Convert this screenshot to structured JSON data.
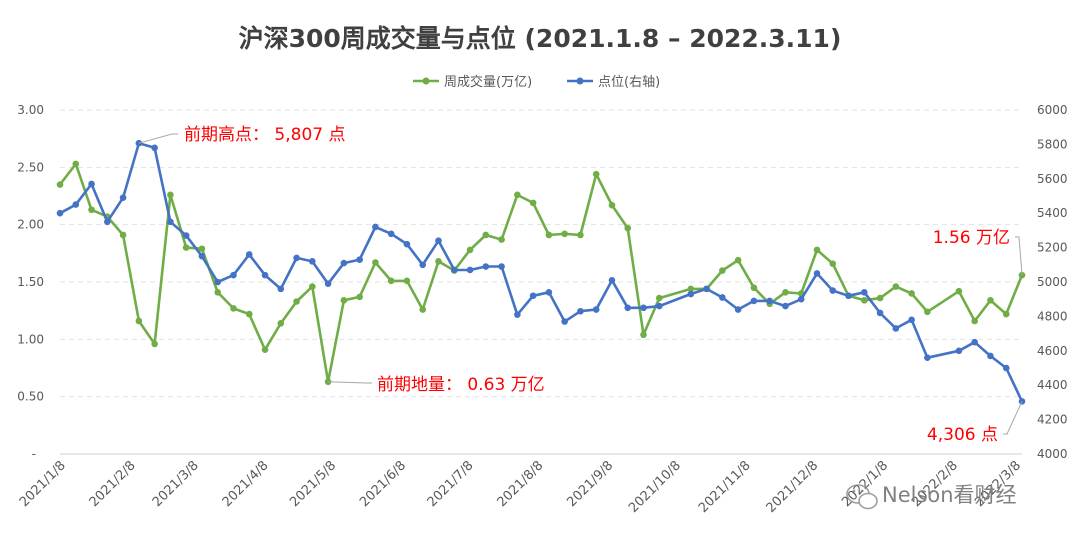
{
  "chart_data": {
    "type": "line",
    "title": "沪深300周成交量与点位 (2021.1.8 – 2022.3.11)",
    "legend_position": "top",
    "grid": true,
    "xlabel": "",
    "ylabel": "",
    "y2label": "",
    "ylim": [
      0,
      3
    ],
    "y2lim": [
      4000,
      6000
    ],
    "x_tick_labels": [
      "2021/1/8",
      "2021/2/8",
      "2021/3/8",
      "2021/4/8",
      "2021/5/8",
      "2021/6/8",
      "2021/7/8",
      "2021/8/8",
      "2021/9/8",
      "2021/10/8",
      "2021/11/8",
      "2021/12/8",
      "2022/1/8",
      "2022/2/8",
      "2022/3/8"
    ],
    "y_tick_labels": [
      "-",
      "0.50",
      "1.00",
      "1.50",
      "2.00",
      "2.50",
      "3.00"
    ],
    "y2_tick_labels": [
      "4000",
      "4200",
      "4400",
      "4600",
      "4800",
      "5000",
      "5200",
      "5400",
      "5600",
      "5800",
      "6000"
    ],
    "series": [
      {
        "name": "周成交量(万亿)",
        "color": "#70ad47",
        "axis": "left",
        "points": [
          [
            "2021-01-08",
            2.35
          ],
          [
            "2021-01-15",
            2.53
          ],
          [
            "2021-01-22",
            2.13
          ],
          [
            "2021-01-29",
            2.07
          ],
          [
            "2021-02-05",
            1.91
          ],
          [
            "2021-02-12",
            1.16
          ],
          [
            "2021-02-19",
            0.96
          ],
          [
            "2021-02-26",
            2.26
          ],
          [
            "2021-03-05",
            1.8
          ],
          [
            "2021-03-12",
            1.79
          ],
          [
            "2021-03-19",
            1.41
          ],
          [
            "2021-03-26",
            1.27
          ],
          [
            "2021-04-02",
            1.22
          ],
          [
            "2021-04-09",
            0.91
          ],
          [
            "2021-04-16",
            1.14
          ],
          [
            "2021-04-23",
            1.33
          ],
          [
            "2021-04-30",
            1.46
          ],
          [
            "2021-05-07",
            0.63
          ],
          [
            "2021-05-14",
            1.34
          ],
          [
            "2021-05-21",
            1.37
          ],
          [
            "2021-05-28",
            1.67
          ],
          [
            "2021-06-04",
            1.51
          ],
          [
            "2021-06-11",
            1.51
          ],
          [
            "2021-06-18",
            1.26
          ],
          [
            "2021-06-25",
            1.68
          ],
          [
            "2021-07-02",
            1.6
          ],
          [
            "2021-07-09",
            1.78
          ],
          [
            "2021-07-16",
            1.91
          ],
          [
            "2021-07-23",
            1.87
          ],
          [
            "2021-07-30",
            2.26
          ],
          [
            "2021-08-06",
            2.19
          ],
          [
            "2021-08-13",
            1.91
          ],
          [
            "2021-08-20",
            1.92
          ],
          [
            "2021-08-27",
            1.91
          ],
          [
            "2021-09-03",
            2.44
          ],
          [
            "2021-09-10",
            2.17
          ],
          [
            "2021-09-17",
            1.97
          ],
          [
            "2021-09-24",
            1.04
          ],
          [
            "2021-10-01",
            1.36
          ],
          [
            "2021-10-15",
            1.44
          ],
          [
            "2021-10-22",
            1.44
          ],
          [
            "2021-10-29",
            1.6
          ],
          [
            "2021-11-05",
            1.69
          ],
          [
            "2021-11-12",
            1.45
          ],
          [
            "2021-11-19",
            1.31
          ],
          [
            "2021-11-26",
            1.41
          ],
          [
            "2021-12-03",
            1.4
          ],
          [
            "2021-12-10",
            1.78
          ],
          [
            "2021-12-17",
            1.66
          ],
          [
            "2021-12-24",
            1.38
          ],
          [
            "2021-12-31",
            1.34
          ],
          [
            "2022-01-07",
            1.36
          ],
          [
            "2022-01-14",
            1.46
          ],
          [
            "2022-01-21",
            1.4
          ],
          [
            "2022-01-28",
            1.24
          ],
          [
            "2022-02-11",
            1.42
          ],
          [
            "2022-02-18",
            1.16
          ],
          [
            "2022-02-25",
            1.34
          ],
          [
            "2022-03-04",
            1.22
          ],
          [
            "2022-03-11",
            1.56
          ]
        ]
      },
      {
        "name": "点位(右轴)",
        "color": "#4472c4",
        "axis": "right",
        "points": [
          [
            "2021-01-08",
            5400
          ],
          [
            "2021-01-15",
            5450
          ],
          [
            "2021-01-22",
            5570
          ],
          [
            "2021-01-29",
            5350
          ],
          [
            "2021-02-05",
            5490
          ],
          [
            "2021-02-12",
            5807
          ],
          [
            "2021-02-19",
            5780
          ],
          [
            "2021-02-26",
            5350
          ],
          [
            "2021-03-05",
            5270
          ],
          [
            "2021-03-12",
            5150
          ],
          [
            "2021-03-19",
            5000
          ],
          [
            "2021-03-26",
            5040
          ],
          [
            "2021-04-02",
            5160
          ],
          [
            "2021-04-09",
            5040
          ],
          [
            "2021-04-16",
            4960
          ],
          [
            "2021-04-23",
            5140
          ],
          [
            "2021-04-30",
            5120
          ],
          [
            "2021-05-07",
            4990
          ],
          [
            "2021-05-14",
            5110
          ],
          [
            "2021-05-21",
            5130
          ],
          [
            "2021-05-28",
            5320
          ],
          [
            "2021-06-04",
            5280
          ],
          [
            "2021-06-11",
            5220
          ],
          [
            "2021-06-18",
            5100
          ],
          [
            "2021-06-25",
            5240
          ],
          [
            "2021-07-02",
            5070
          ],
          [
            "2021-07-09",
            5070
          ],
          [
            "2021-07-16",
            5090
          ],
          [
            "2021-07-23",
            5090
          ],
          [
            "2021-07-30",
            4810
          ],
          [
            "2021-08-06",
            4920
          ],
          [
            "2021-08-13",
            4940
          ],
          [
            "2021-08-20",
            4770
          ],
          [
            "2021-08-27",
            4830
          ],
          [
            "2021-09-03",
            4840
          ],
          [
            "2021-09-10",
            5010
          ],
          [
            "2021-09-17",
            4850
          ],
          [
            "2021-09-24",
            4850
          ],
          [
            "2021-10-01",
            4860
          ],
          [
            "2021-10-15",
            4930
          ],
          [
            "2021-10-22",
            4960
          ],
          [
            "2021-10-29",
            4910
          ],
          [
            "2021-11-05",
            4840
          ],
          [
            "2021-11-12",
            4890
          ],
          [
            "2021-11-19",
            4890
          ],
          [
            "2021-11-26",
            4860
          ],
          [
            "2021-12-03",
            4900
          ],
          [
            "2021-12-10",
            5050
          ],
          [
            "2021-12-17",
            4950
          ],
          [
            "2021-12-24",
            4920
          ],
          [
            "2021-12-31",
            4940
          ],
          [
            "2022-01-07",
            4820
          ],
          [
            "2022-01-14",
            4730
          ],
          [
            "2022-01-21",
            4780
          ],
          [
            "2022-01-28",
            4560
          ],
          [
            "2022-02-11",
            4600
          ],
          [
            "2022-02-18",
            4650
          ],
          [
            "2022-02-25",
            4570
          ],
          [
            "2022-03-04",
            4500
          ],
          [
            "2022-03-11",
            4306
          ]
        ]
      }
    ],
    "annotations": [
      {
        "text": "前期高点： 5,807 点",
        "series": 1,
        "point": "2021-02-12",
        "color": "#ff0000"
      },
      {
        "text": "前期地量： 0.63 万亿",
        "series": 0,
        "point": "2021-05-07",
        "color": "#ff0000"
      },
      {
        "text": "1.56 万亿",
        "series": 0,
        "point": "2022-03-11",
        "color": "#ff0000"
      },
      {
        "text": "4,306 点",
        "series": 1,
        "point": "2022-03-11",
        "color": "#ff0000"
      }
    ]
  },
  "watermark": "Nelson看财经"
}
